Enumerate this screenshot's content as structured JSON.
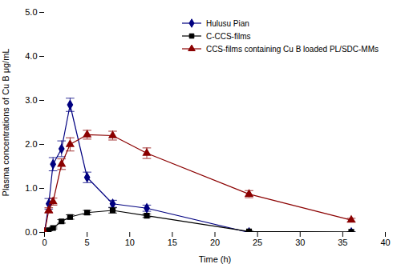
{
  "chart_data": {
    "type": "line",
    "xlabel": "Time (h)",
    "ylabel": "Plasma concentrations of Cu B μg/mL",
    "x": [
      0,
      0.5,
      1,
      2,
      3,
      5,
      8,
      12,
      24,
      36
    ],
    "series": [
      {
        "name": "Hulusu Pian",
        "color": "#000080",
        "marker": "diamond",
        "line_style": "solid",
        "values": [
          0.0,
          0.65,
          1.55,
          1.9,
          2.9,
          1.25,
          0.65,
          0.55,
          0.0,
          0.0
        ],
        "yerr": [
          0.0,
          0.12,
          0.15,
          0.18,
          0.15,
          0.12,
          0.08,
          0.07,
          0.02,
          0.01
        ]
      },
      {
        "name": "C-CCS-films",
        "color": "#000000",
        "marker": "square",
        "line_style": "solid",
        "values": [
          0.0,
          0.05,
          0.1,
          0.25,
          0.35,
          0.45,
          0.5,
          0.38,
          0.02,
          0.01
        ],
        "yerr": [
          0.0,
          0.01,
          0.02,
          0.04,
          0.05,
          0.05,
          0.06,
          0.04,
          0.01,
          0.005
        ]
      },
      {
        "name": "CCS-films containing Cu B loaded PL/SDC-MMs",
        "color": "#8b0000",
        "marker": "triangle",
        "line_style": "solid",
        "values": [
          0.0,
          0.5,
          0.7,
          1.55,
          2.0,
          2.22,
          2.2,
          1.8,
          0.87,
          0.28
        ],
        "yerr": [
          0.0,
          0.06,
          0.08,
          0.12,
          0.15,
          0.1,
          0.1,
          0.12,
          0.08,
          0.04
        ]
      }
    ],
    "xlim": [
      0,
      40
    ],
    "ylim": [
      0,
      5
    ],
    "xticks": [
      0,
      5,
      10,
      15,
      20,
      25,
      30,
      35,
      40
    ],
    "yticks": [
      0,
      1,
      2,
      3,
      4,
      5
    ],
    "grid": false,
    "legend": "upper right"
  }
}
